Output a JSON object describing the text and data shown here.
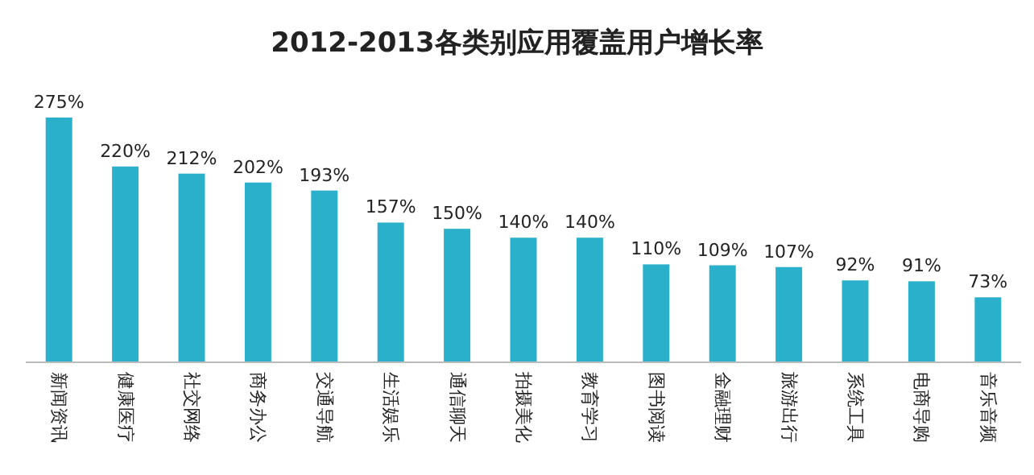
{
  "chart_data": {
    "type": "bar",
    "title": "2012-2013各类别应用覆盖用户增长率",
    "categories": [
      "新闻资讯",
      "健康医疗",
      "社交网络",
      "商务办公",
      "交通导航",
      "生活娱乐",
      "通信聊天",
      "拍摄美化",
      "教育学习",
      "图书阅读",
      "金融理财",
      "旅游出行",
      "系统工具",
      "电商导购",
      "音乐音频"
    ],
    "values": [
      275,
      220,
      212,
      202,
      193,
      157,
      150,
      140,
      140,
      110,
      109,
      107,
      92,
      91,
      73
    ],
    "value_labels": [
      "275%",
      "220%",
      "212%",
      "202%",
      "193%",
      "157%",
      "150%",
      "140%",
      "140%",
      "110%",
      "109%",
      "107%",
      "92%",
      "91%",
      "73%"
    ],
    "color": "#2bb0cb"
  }
}
